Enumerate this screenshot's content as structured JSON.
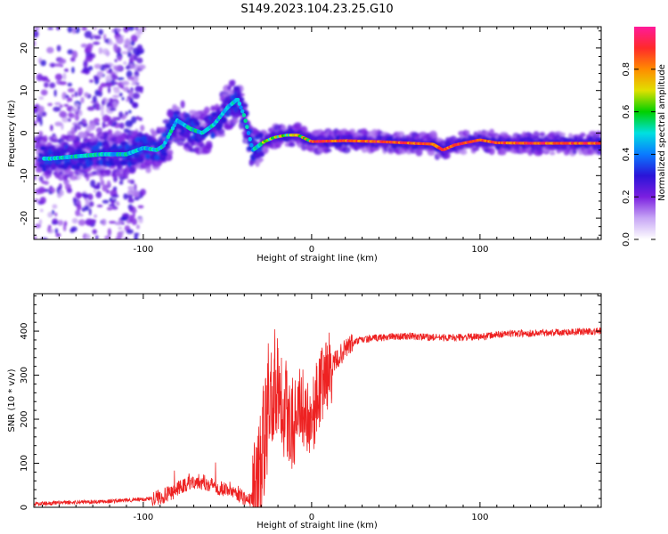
{
  "figure": {
    "title": "S149.2023.104.23.25.G10"
  },
  "colors": {
    "snr_line": "#ee2222",
    "colorbar_stops": [
      "#ffffff",
      "#c7a6f5",
      "#7b1fe0",
      "#2a14d8",
      "#0a7aff",
      "#00e0e0",
      "#00d000",
      "#e0e000",
      "#ff8c00",
      "#ff2a2a",
      "#ff1a9a"
    ]
  },
  "chart_data": [
    {
      "type": "heatmap",
      "title": "",
      "xlabel": "Height of straight line (km)",
      "ylabel": "Frequency (Hz)",
      "xlim": [
        -165,
        172
      ],
      "ylim": [
        -25,
        25
      ],
      "xticks": [
        -100,
        0,
        100
      ],
      "xtick_labels": [
        "-100",
        "0",
        "100"
      ],
      "yticks": [
        -20,
        -10,
        0,
        10,
        20
      ],
      "ytick_labels": [
        "-20",
        "-10",
        "0",
        "10",
        "20"
      ],
      "colorbar": {
        "label": "Normalized spectral amplitude",
        "range": [
          0,
          1
        ],
        "ticks": [
          0.0,
          0.2,
          0.4,
          0.6,
          0.8
        ],
        "tick_labels": [
          "0.0",
          "0.2",
          "0.4",
          "0.6",
          "0.8"
        ]
      },
      "ridge": [
        {
          "x": -155,
          "y": -6
        },
        {
          "x": -140,
          "y": -5.5
        },
        {
          "x": -125,
          "y": -5
        },
        {
          "x": -110,
          "y": -5
        },
        {
          "x": -100,
          "y": -3.5
        },
        {
          "x": -92,
          "y": -4
        },
        {
          "x": -88,
          "y": -3
        },
        {
          "x": -80,
          "y": 3
        },
        {
          "x": -72,
          "y": 1
        },
        {
          "x": -65,
          "y": 0
        },
        {
          "x": -58,
          "y": 2
        },
        {
          "x": -50,
          "y": 6
        },
        {
          "x": -44,
          "y": 8
        },
        {
          "x": -40,
          "y": 4
        },
        {
          "x": -35,
          "y": -4
        },
        {
          "x": -28,
          "y": -2
        },
        {
          "x": -22,
          "y": -1
        },
        {
          "x": -15,
          "y": -0.5
        },
        {
          "x": -8,
          "y": -0.5
        },
        {
          "x": 0,
          "y": -2
        },
        {
          "x": 20,
          "y": -1.8
        },
        {
          "x": 40,
          "y": -2
        },
        {
          "x": 60,
          "y": -2.4
        },
        {
          "x": 72,
          "y": -2.6
        },
        {
          "x": 78,
          "y": -4
        },
        {
          "x": 85,
          "y": -2.8
        },
        {
          "x": 100,
          "y": -1.6
        },
        {
          "x": 110,
          "y": -2.3
        },
        {
          "x": 130,
          "y": -2.4
        },
        {
          "x": 150,
          "y": -2.4
        },
        {
          "x": 170,
          "y": -2.4
        }
      ]
    },
    {
      "type": "line",
      "title": "",
      "xlabel": "Height of straight line (km)",
      "ylabel": "SNR (10 * v/v)",
      "xlim": [
        -165,
        172
      ],
      "ylim": [
        0,
        485
      ],
      "xticks": [
        -100,
        0,
        100
      ],
      "xtick_labels": [
        "-100",
        "0",
        "100"
      ],
      "yticks": [
        0,
        100,
        200,
        300,
        400
      ],
      "ytick_labels": [
        "0",
        "100",
        "200",
        "300",
        "400"
      ],
      "series": [
        {
          "values_x": [
            -165,
            -150,
            -135,
            -120,
            -110,
            -100,
            -92,
            -85,
            -78,
            -70,
            -62,
            -55,
            -48,
            -42,
            -38,
            -35,
            -32,
            -28,
            -25,
            -22,
            -20,
            -18,
            -15,
            -12,
            -8,
            -4,
            0,
            4,
            8,
            12,
            16,
            20,
            25,
            30,
            40,
            50,
            60,
            70,
            80,
            90,
            100,
            110,
            120,
            130,
            140,
            150,
            160,
            172
          ],
          "values_y": [
            8,
            10,
            12,
            14,
            16,
            18,
            22,
            30,
            45,
            60,
            55,
            45,
            40,
            28,
            15,
            20,
            60,
            150,
            230,
            280,
            300,
            260,
            220,
            200,
            240,
            220,
            200,
            260,
            300,
            320,
            340,
            360,
            375,
            380,
            385,
            388,
            388,
            386,
            385,
            386,
            387,
            392,
            395,
            395,
            397,
            398,
            399,
            400
          ]
        }
      ]
    }
  ]
}
